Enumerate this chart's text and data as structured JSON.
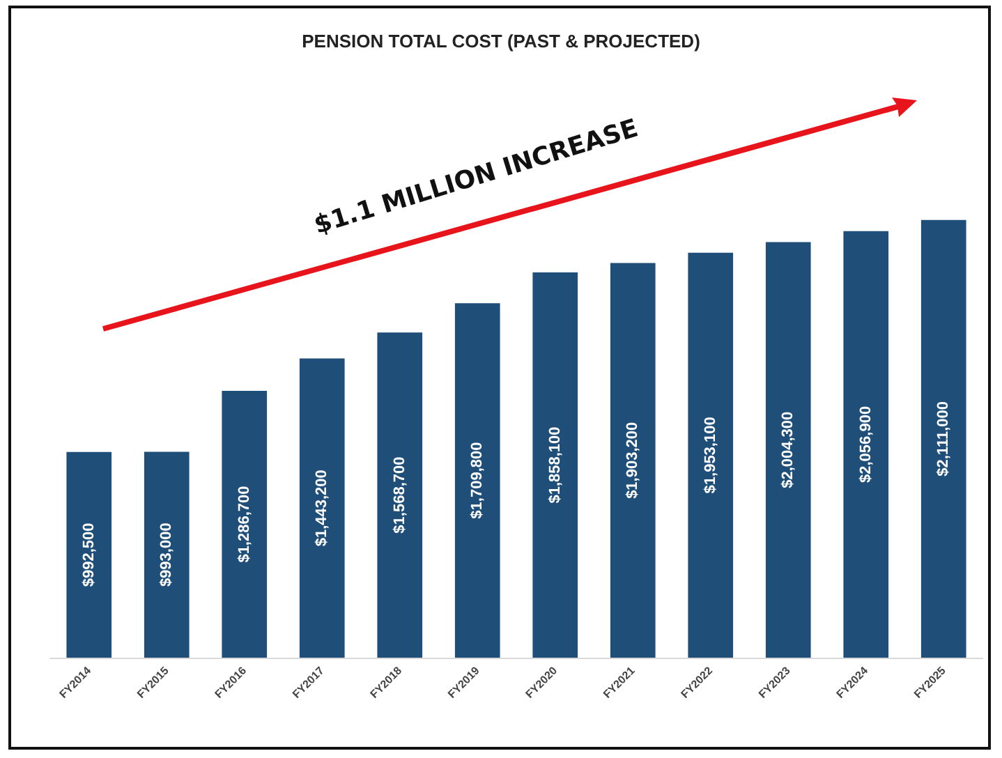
{
  "chart_data": {
    "type": "bar",
    "title": "PENSION TOTAL COST (PAST & PROJECTED)",
    "categories": [
      "FY2014",
      "FY2015",
      "FY2016",
      "FY2017",
      "FY2018",
      "FY2019",
      "FY2020",
      "FY2021",
      "FY2022",
      "FY2023",
      "FY2024",
      "FY2025"
    ],
    "values": [
      992500,
      993000,
      1286700,
      1443200,
      1568700,
      1709800,
      1858100,
      1903200,
      1953100,
      2004300,
      2056900,
      2111000
    ],
    "value_labels": [
      "$992,500",
      "$993,000",
      "$1,286,700",
      "$1,443,200",
      "$1,568,700",
      "$1,709,800",
      "$1,858,100",
      "$1,903,200",
      "$1,953,100",
      "$2,004,300",
      "$2,056,900",
      "$2,111,000"
    ],
    "color": "#1f4e79",
    "annotations": [
      "$1.1 MILLION INCREASE"
    ]
  }
}
